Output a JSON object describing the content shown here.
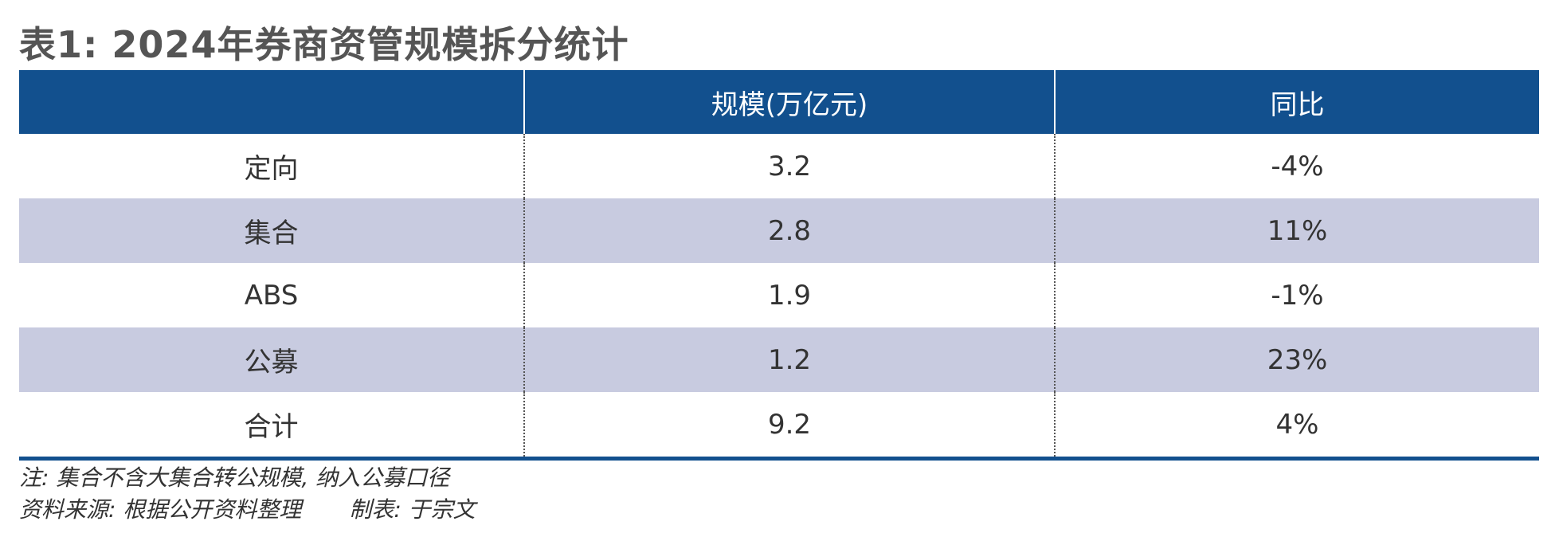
{
  "title": "表1: 2024年券商资管规模拆分统计",
  "chart_data": {
    "type": "table",
    "title": "表1: 2024年券商资管规模拆分统计",
    "columns": [
      "",
      "规模(万亿元)",
      "同比"
    ],
    "rows": [
      {
        "category": "定向",
        "scale": "3.2",
        "yoy": "-4%"
      },
      {
        "category": "集合",
        "scale": "2.8",
        "yoy": "11%"
      },
      {
        "category": "ABS",
        "scale": "1.9",
        "yoy": "-1%"
      },
      {
        "category": "公募",
        "scale": "1.2",
        "yoy": "23%"
      },
      {
        "category": "合计",
        "scale": "9.2",
        "yoy": "4%"
      }
    ]
  },
  "colors": {
    "header_bg": "#12508e",
    "shaded_row": "#c8cbe0"
  },
  "footer": {
    "note": "注: 集合不含大集合转公规模, 纳入公募口径",
    "source": "资料来源: 根据公开资料整理",
    "author": "制表: 于宗文"
  }
}
